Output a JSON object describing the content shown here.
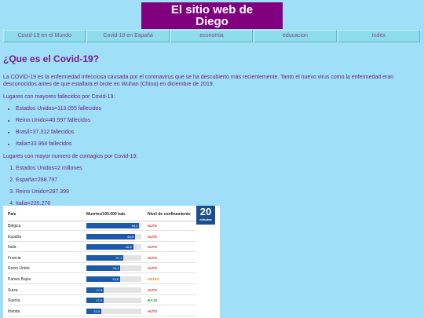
{
  "site": {
    "title_line1": "El sitio web de",
    "title_line2": "Diego"
  },
  "nav": [
    "Covid-19 en el Mundo",
    "Covid-19 en España",
    "economia",
    "educacion",
    "Index"
  ],
  "article": {
    "heading": "¿Que es el Covid-19?",
    "intro": "La COVID-19 es la enfermedad infecciosa causada por el coronavirus que se ha descubierto más recientemente. Tanto el nuevo virus como la enfermedad eran desconocidos antes de que estallara el brote en Wuhan (China) en diciembre de 2019.",
    "deaths_title": "Lugares con mayores fallecidos por Covid-19:",
    "deaths": [
      "Estados Unidos=113.055 fallecidos",
      "Reino Unido=40.597 fallecidos",
      "Brasil=37.312 fallecidos",
      "Italia=33.964 fallecidos"
    ],
    "cases_title": "Lugares con mayor numero de contagios por Covid-19:",
    "cases": [
      "Estados Unidos=2 millones",
      "España=288.797",
      "Reino Unido=287.399",
      "Italia=235.278"
    ]
  },
  "figure": {
    "col_country": "País",
    "col_deaths": "Muertes/100.000 hab.",
    "col_level": "Nivel de confinamiento",
    "logo_number": "20",
    "logo_text": "minutos",
    "level_colors": {
      "ALTO": "#d42020",
      "MEDIO": "#e0a000",
      "BAJO": "#20a040"
    },
    "chart_data": {
      "type": "bar",
      "categories": [
        "Bélgica",
        "España",
        "Italia",
        "Francia",
        "Reino Unido",
        "Países Bajos",
        "Suiza",
        "Suecia",
        "Irlanda"
      ],
      "values": [
        53.0,
        48.6,
        46.8,
        37.1,
        34.1,
        33.8,
        17.4,
        17.3,
        15.0
      ],
      "labels": [
        "53,0",
        "48,6",
        "46,8",
        "37,1",
        "34,1",
        "33,8",
        "17,4",
        "17,3",
        "15,0"
      ],
      "levels": [
        "ALTO",
        "ALTO",
        "ALTO",
        "ALTO",
        "ALTO",
        "MEDIO",
        "ALTO",
        "BAJO",
        "ALTO"
      ],
      "xlim": [
        0,
        55
      ]
    }
  }
}
